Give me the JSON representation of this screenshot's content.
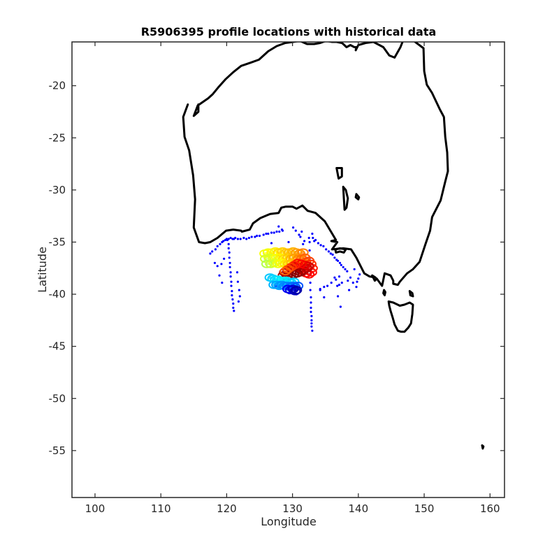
{
  "chart_data": {
    "type": "scatter",
    "title": "R5906395 profile locations with historical data",
    "xlabel": "Longitude",
    "ylabel": "Latitude",
    "xlim": [
      96.5,
      162.2
    ],
    "ylim": [
      -59.5,
      -15.8
    ],
    "xticks": [
      100,
      110,
      120,
      130,
      140,
      150,
      160
    ],
    "yticks": [
      -20,
      -25,
      -30,
      -35,
      -40,
      -45,
      -50,
      -55
    ],
    "xtick_labels": [
      "100",
      "110",
      "120",
      "130",
      "140",
      "150",
      "160"
    ],
    "ytick_labels": [
      "-20",
      "-25",
      "-30",
      "-35",
      "-40",
      "-45",
      "-50",
      "-55"
    ],
    "grid": false,
    "legend": "none",
    "colors": {
      "historical": "#0000ff",
      "coastline": "#000000",
      "axes": "#262626"
    },
    "coastlines": [
      {
        "name": "Australia mainland",
        "lon": [
          114.1,
          113.4,
          113.6,
          114.3,
          114.9,
          115.2,
          115.0,
          115.8,
          116.7,
          117.5,
          118.6,
          119.9,
          121.0,
          122.2,
          122.3,
          123.5,
          124.0,
          125.1,
          126.6,
          127.9,
          128.3,
          129.0,
          130.0,
          130.6,
          131.5,
          132.3,
          133.5,
          134.9,
          136.6,
          135.9,
          136.8,
          136.0,
          137.7,
          138.9,
          139.7,
          140.9,
          141.7,
          142.6,
          142.1,
          142.5,
          142.8,
          143.6,
          144.0,
          144.9,
          145.3,
          145.3,
          146.0,
          146.3,
          147.4,
          148.3,
          149.3,
          150.2,
          150.9,
          151.2,
          152.5,
          153.2,
          153.6,
          153.5,
          153.2,
          153.0,
          152.4,
          151.2,
          150.4,
          150.0,
          149.9,
          148.2,
          147.2,
          146.4,
          145.5,
          144.7,
          143.8,
          142.3,
          141.1,
          140.0,
          139.6,
          139.7,
          139.4,
          138.8,
          138.2,
          137.7,
          137.5,
          136.7,
          136.0,
          135.1,
          134.2,
          133.3,
          132.2,
          131.1,
          130.1,
          128.9,
          127.6,
          126.3,
          124.9,
          123.6,
          122.2,
          121.0,
          119.8,
          118.8,
          117.9,
          117.2,
          116.3,
          115.6,
          115.0,
          115.7,
          115.7,
          115.2,
          115.0,
          114.9,
          114.6,
          114.1
        ],
        "lat": [
          -21.8,
          -23.0,
          -24.9,
          -26.2,
          -28.6,
          -30.9,
          -33.6,
          -35.0,
          -35.1,
          -35.0,
          -34.6,
          -33.9,
          -33.8,
          -33.9,
          -34.0,
          -33.8,
          -33.2,
          -32.7,
          -32.3,
          -32.2,
          -31.7,
          -31.6,
          -31.6,
          -31.8,
          -31.5,
          -32.0,
          -32.2,
          -33.0,
          -34.8,
          -34.9,
          -35.0,
          -35.7,
          -35.6,
          -35.7,
          -36.5,
          -38.0,
          -38.3,
          -38.4,
          -38.2,
          -38.7,
          -38.5,
          -39.2,
          -38.0,
          -38.2,
          -38.7,
          -39.0,
          -39.1,
          -38.8,
          -38.0,
          -37.6,
          -36.9,
          -35.2,
          -33.9,
          -32.6,
          -31.0,
          -29.2,
          -28.2,
          -26.4,
          -24.9,
          -23.0,
          -22.3,
          -20.7,
          -19.9,
          -18.6,
          -16.4,
          -15.6,
          -15.0,
          -16.3,
          -17.3,
          -17.1,
          -16.3,
          -15.8,
          -15.9,
          -16.1,
          -16.6,
          -16.3,
          -16.3,
          -16.1,
          -16.3,
          -16.0,
          -15.9,
          -15.8,
          -15.8,
          -15.7,
          -15.9,
          -16.0,
          -16.0,
          -15.7,
          -15.8,
          -15.9,
          -16.2,
          -16.7,
          -17.5,
          -17.8,
          -18.1,
          -18.7,
          -19.4,
          -20.1,
          -20.8,
          -21.2,
          -21.6,
          -21.9,
          -22.9,
          -22.5,
          -21.8
        ]
      },
      {
        "name": "Tasmania",
        "lon": [
          144.6,
          145.3,
          146.3,
          147.0,
          147.8,
          148.3,
          148.2,
          148.0,
          147.6,
          147.0,
          146.5,
          146.0,
          145.5,
          145.2,
          144.9,
          144.7,
          144.6
        ],
        "lat": [
          -40.7,
          -40.8,
          -41.1,
          -41.0,
          -40.8,
          -41.0,
          -41.9,
          -42.8,
          -43.2,
          -43.6,
          -43.6,
          -43.5,
          -42.9,
          -42.2,
          -41.6,
          -41.1,
          -40.7
        ]
      },
      {
        "name": "Kangaroo Island",
        "lon": [
          136.5,
          137.2,
          138.1,
          137.8,
          137.2,
          136.6,
          136.5
        ],
        "lat": [
          -35.7,
          -35.6,
          -35.7,
          -36.0,
          -35.9,
          -36.0,
          -35.7
        ]
      },
      {
        "name": "King Island",
        "lon": [
          143.9,
          144.1,
          144.0,
          143.8,
          143.9
        ],
        "lat": [
          -39.6,
          -39.8,
          -40.1,
          -39.9,
          -39.6
        ]
      },
      {
        "name": "Flinders Island",
        "lon": [
          147.8,
          148.2,
          148.3,
          147.9,
          147.8
        ],
        "lat": [
          -39.7,
          -39.9,
          -40.2,
          -40.1,
          -39.7
        ]
      },
      {
        "name": "Lake Torrens",
        "lon": [
          137.7,
          138.1,
          138.4,
          138.2,
          137.9,
          137.8,
          137.7
        ],
        "lat": [
          -29.7,
          -30.0,
          -30.8,
          -31.7,
          -31.9,
          -30.8,
          -29.7
        ]
      },
      {
        "name": "Lake Eyre",
        "lon": [
          136.7,
          137.5,
          137.5,
          137.0,
          136.7
        ],
        "lat": [
          -27.9,
          -27.9,
          -28.7,
          -28.9,
          -27.9
        ]
      },
      {
        "name": "Lake Frome",
        "lon": [
          139.7,
          140.1,
          140.0,
          139.6,
          139.7
        ],
        "lat": [
          -30.4,
          -30.7,
          -30.9,
          -30.7,
          -30.4
        ]
      },
      {
        "name": "Macquarie Island",
        "lon": [
          158.8,
          159.0,
          158.9,
          158.8
        ],
        "lat": [
          -54.5,
          -54.6,
          -54.8,
          -54.5
        ]
      }
    ],
    "historical": {
      "name": "historical data",
      "lon": [
        117.5,
        117.8,
        118.3,
        118.6,
        119.0,
        119.3,
        119.5,
        119.8,
        120.0,
        120.1,
        120.3,
        120.6,
        120.9,
        121.1,
        121.3,
        121.7,
        122.1,
        122.6,
        123.0,
        123.4,
        123.8,
        124.3,
        124.6,
        125.0,
        125.6,
        126.0,
        126.3,
        126.8,
        127.2,
        127.6,
        128.0,
        128.5,
        120.3,
        120.3,
        120.4,
        120.4,
        120.5,
        120.5,
        120.6,
        120.6,
        120.7,
        120.7,
        120.8,
        120.8,
        120.9,
        121.0,
        121.0,
        121.1,
        119.6,
        119.2,
        118.6,
        118.2,
        118.9,
        119.3,
        121.6,
        121.7,
        121.9,
        122.0,
        121.8,
        132.6,
        132.6,
        132.6,
        132.7,
        132.7,
        132.7,
        132.7,
        132.8,
        132.8,
        132.8,
        132.8,
        132.9,
        132.9,
        132.9,
        132.9,
        133.0,
        133.0,
        133.1,
        133.5,
        133.9,
        134.3,
        134.7,
        135.1,
        135.5,
        135.8,
        136.1,
        136.4,
        136.7,
        136.9,
        137.2,
        137.4,
        137.7,
        138.0,
        138.3,
        137.1,
        136.6,
        135.9,
        135.3,
        134.8,
        134.2,
        136.8,
        137.5,
        138.4,
        138.8,
        139.2,
        139.7,
        140.0,
        140.2,
        139.4,
        139.8,
        138.6,
        137.3,
        136.9,
        130.1,
        130.5,
        131.0,
        129.4,
        131.4,
        127.9,
        128.4,
        126.8,
        131.2,
        131.6,
        131.8,
        134.2,
        134.8,
        136.4,
        137.1,
        132.5,
        133.3,
        129.5,
        130.6,
        127.5
      ],
      "lat": [
        -36.1,
        -35.9,
        -35.7,
        -35.4,
        -35.2,
        -35.0,
        -34.9,
        -34.8,
        -34.7,
        -34.8,
        -34.7,
        -34.6,
        -34.7,
        -34.7,
        -34.6,
        -34.7,
        -34.7,
        -34.6,
        -34.7,
        -34.6,
        -34.5,
        -34.5,
        -34.4,
        -34.4,
        -34.3,
        -34.2,
        -34.2,
        -34.1,
        -34.1,
        -34.0,
        -34.0,
        -33.9,
        -35.2,
        -35.6,
        -36.0,
        -36.5,
        -37.0,
        -37.4,
        -37.9,
        -38.3,
        -38.8,
        -39.2,
        -39.7,
        -40.1,
        -40.5,
        -40.9,
        -41.3,
        -41.6,
        -36.6,
        -37.1,
        -37.3,
        -37.0,
        -38.2,
        -38.9,
        -37.9,
        -38.8,
        -39.6,
        -40.2,
        -40.7,
        -35.0,
        -35.8,
        -36.6,
        -37.4,
        -38.1,
        -38.9,
        -39.6,
        -40.3,
        -40.8,
        -41.3,
        -41.7,
        -42.1,
        -42.5,
        -42.8,
        -43.1,
        -43.5,
        -34.2,
        -34.6,
        -34.8,
        -35.1,
        -35.3,
        -35.4,
        -35.7,
        -35.9,
        -36.1,
        -36.2,
        -36.5,
        -36.7,
        -36.8,
        -37.0,
        -37.2,
        -37.4,
        -37.6,
        -37.8,
        -38.3,
        -38.6,
        -38.9,
        -39.2,
        -39.3,
        -39.5,
        -39.2,
        -38.9,
        -38.7,
        -38.4,
        -38.9,
        -39.3,
        -38.5,
        -38.1,
        -37.6,
        -38.8,
        -39.6,
        -41.2,
        -40.2,
        -33.6,
        -33.9,
        -34.3,
        -35.0,
        -34.0,
        -33.5,
        -33.8,
        -35.1,
        -34.5,
        -35.2,
        -34.9,
        -39.6,
        -40.3,
        -38.4,
        -39.1,
        -34.6,
        -34.9,
        -39.9,
        -40.0,
        -39.2
      ]
    },
    "profiles": {
      "name": "profile locations",
      "colormap": "jet",
      "lon": [
        125.8,
        126.3,
        126.9,
        127.4,
        127.9,
        128.5,
        129.0,
        129.5,
        130.1,
        130.6,
        131.1,
        131.6,
        125.9,
        126.5,
        127.1,
        127.6,
        128.2,
        128.7,
        129.3,
        129.8,
        130.3,
        130.9,
        131.4,
        131.9,
        126.1,
        126.7,
        127.2,
        127.8,
        128.3,
        128.9,
        129.4,
        129.9,
        130.5,
        131.0,
        131.5,
        132.0,
        132.5,
        132.8,
        133.0,
        132.9,
        132.5,
        132.1,
        131.6,
        131.2,
        130.7,
        130.2,
        129.7,
        129.3,
        128.8,
        128.6,
        129.2,
        129.7,
        130.2,
        130.7,
        131.2,
        131.7,
        132.2,
        132.4,
        131.9,
        131.3,
        130.8,
        130.3,
        129.8,
        129.3,
        128.9,
        126.6,
        127.0,
        127.4,
        127.8,
        128.2,
        128.6,
        129.0,
        129.4,
        129.8,
        130.2,
        127.2,
        127.6,
        128.0,
        128.4,
        128.8,
        129.2,
        129.6,
        130.0,
        130.4,
        130.8,
        129.3,
        129.7,
        130.1,
        130.4,
        130.6
      ],
      "lat": [
        -36.1,
        -36.0,
        -36.0,
        -35.9,
        -36.0,
        -35.9,
        -36.0,
        -36.0,
        -35.9,
        -36.0,
        -36.1,
        -36.0,
        -36.6,
        -36.5,
        -36.6,
        -36.5,
        -36.5,
        -36.6,
        -36.5,
        -36.6,
        -36.5,
        -36.6,
        -36.6,
        -36.5,
        -37.1,
        -37.1,
        -37.0,
        -37.1,
        -37.0,
        -37.1,
        -37.1,
        -37.0,
        -37.1,
        -37.1,
        -37.0,
        -36.9,
        -36.8,
        -37.1,
        -37.5,
        -37.9,
        -38.1,
        -38.0,
        -37.8,
        -37.6,
        -37.4,
        -37.3,
        -37.5,
        -37.7,
        -37.9,
        -38.2,
        -38.3,
        -38.2,
        -38.1,
        -38.0,
        -37.9,
        -37.7,
        -37.5,
        -37.3,
        -37.2,
        -37.1,
        -37.0,
        -37.2,
        -37.4,
        -37.6,
        -37.8,
        -38.4,
        -38.5,
        -38.6,
        -38.6,
        -38.7,
        -38.8,
        -38.7,
        -38.8,
        -38.9,
        -38.8,
        -39.1,
        -39.1,
        -39.2,
        -39.1,
        -39.2,
        -39.2,
        -39.3,
        -39.2,
        -39.3,
        -39.2,
        -39.5,
        -39.6,
        -39.5,
        -39.7,
        -39.6
      ],
      "value": [
        0.62,
        0.61,
        0.63,
        0.64,
        0.66,
        0.67,
        0.68,
        0.69,
        0.7,
        0.72,
        0.73,
        0.75,
        0.58,
        0.59,
        0.6,
        0.62,
        0.64,
        0.66,
        0.68,
        0.7,
        0.72,
        0.74,
        0.76,
        0.78,
        0.55,
        0.57,
        0.59,
        0.61,
        0.63,
        0.65,
        0.67,
        0.69,
        0.71,
        0.73,
        0.76,
        0.79,
        0.81,
        0.83,
        0.85,
        0.86,
        0.87,
        0.88,
        0.89,
        0.9,
        0.91,
        0.92,
        0.93,
        0.94,
        0.95,
        0.96,
        0.97,
        0.98,
        0.99,
        1.0,
        0.98,
        0.96,
        0.94,
        0.92,
        0.9,
        0.88,
        0.86,
        0.84,
        0.82,
        0.8,
        0.78,
        0.32,
        0.33,
        0.34,
        0.35,
        0.36,
        0.37,
        0.36,
        0.35,
        0.34,
        0.33,
        0.3,
        0.29,
        0.28,
        0.27,
        0.26,
        0.25,
        0.24,
        0.23,
        0.22,
        0.21,
        0.12,
        0.1,
        0.08,
        0.06,
        0.04
      ]
    }
  }
}
